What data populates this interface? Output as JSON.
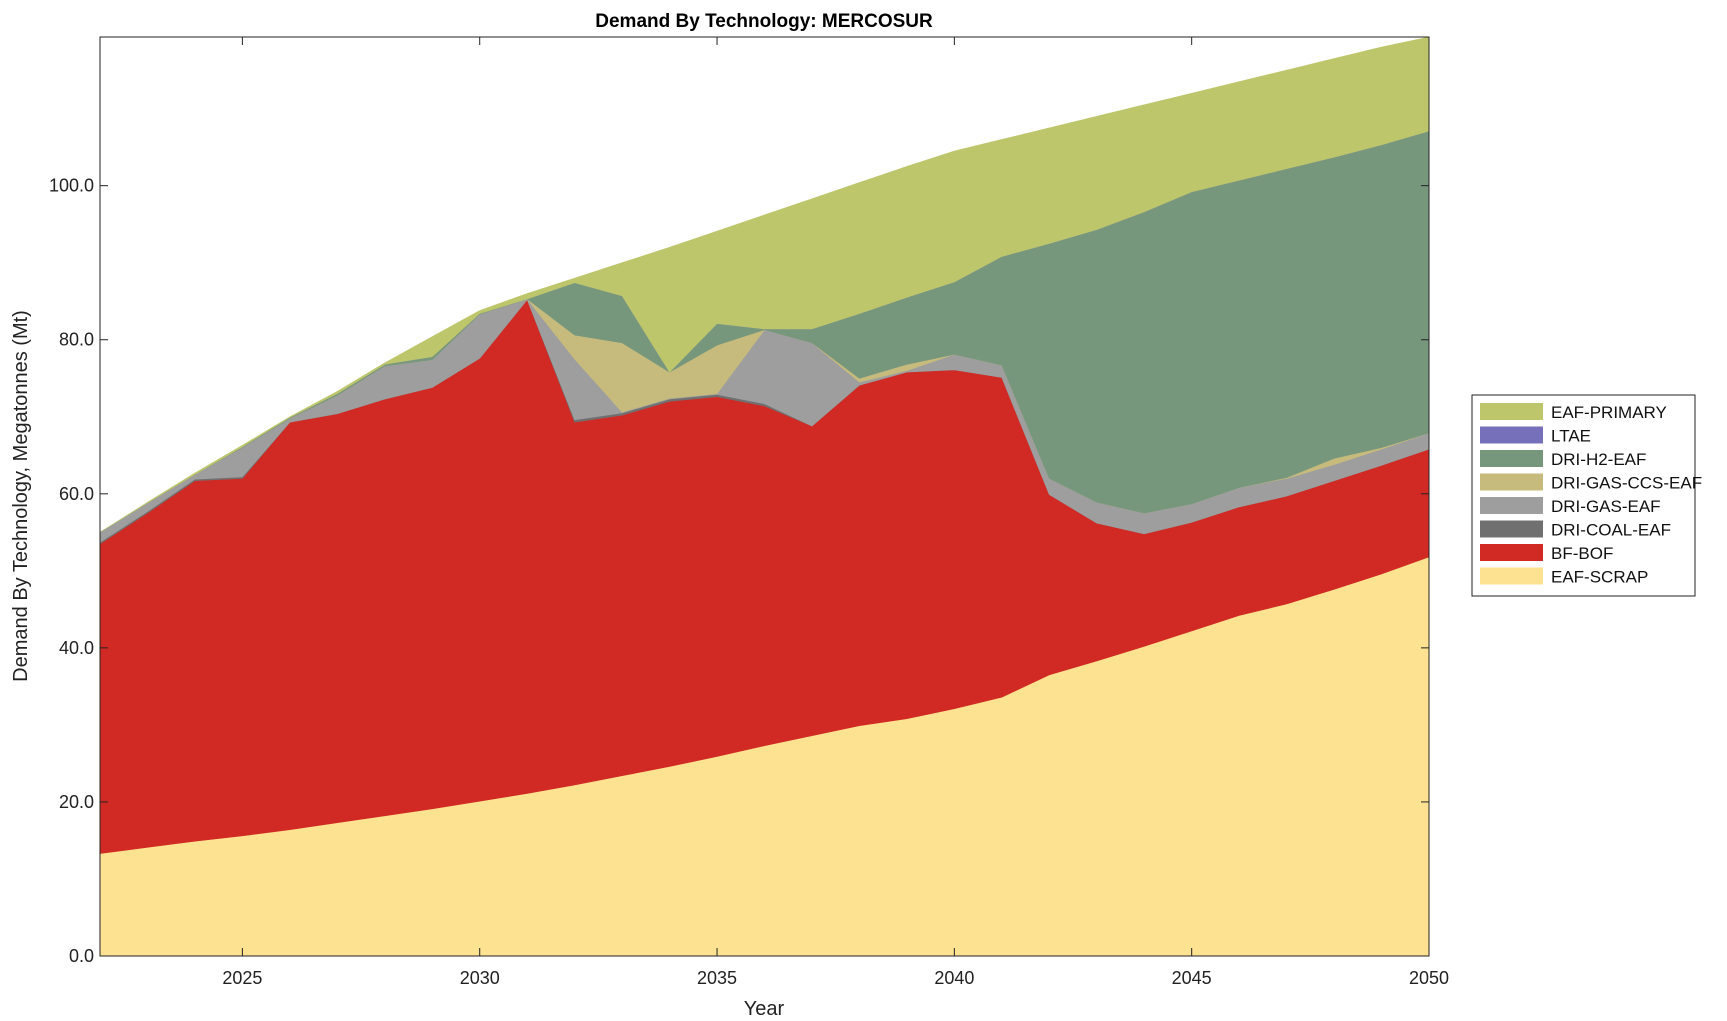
{
  "chart_data": {
    "type": "area",
    "stacked": true,
    "title": "Demand By Technology: MERCOSUR",
    "xlabel": "Year",
    "ylabel": "Demand By Technology, Megatonnes (Mt)",
    "xlim": [
      2022,
      2050
    ],
    "ylim": [
      0,
      119.3
    ],
    "xticks": [
      "2025",
      "2030",
      "2035",
      "2040",
      "2045",
      "2050"
    ],
    "yticks": [
      "0.0",
      "20.0",
      "40.0",
      "60.0",
      "80.0",
      "100.0"
    ],
    "grid": false,
    "legend_position": "right",
    "x": [
      2022,
      2023,
      2024,
      2025,
      2026,
      2027,
      2028,
      2029,
      2030,
      2031,
      2032,
      2033,
      2034,
      2035,
      2036,
      2037,
      2038,
      2039,
      2040,
      2041,
      2042,
      2043,
      2044,
      2045,
      2046,
      2047,
      2048,
      2049,
      2050
    ],
    "series": [
      {
        "name": "EAF-SCRAP",
        "color": "#fde391",
        "values": [
          13.3,
          14.1,
          14.9,
          15.6,
          16.4,
          17.3,
          18.2,
          19.1,
          20.1,
          21.1,
          22.2,
          23.4,
          24.6,
          25.9,
          27.3,
          28.6,
          29.9,
          30.8,
          32.1,
          33.6,
          36.5,
          38.3,
          40.2,
          42.2,
          44.2,
          45.7,
          47.6,
          49.6,
          51.8
        ]
      },
      {
        "name": "BF-BOF",
        "color": "#d12a24",
        "values": [
          40.2,
          43.4,
          46.8,
          46.4,
          52.9,
          53.1,
          54.1,
          54.7,
          57.5,
          64.1,
          47.1,
          46.8,
          47.4,
          46.7,
          44.1,
          40.2,
          44.2,
          45.0,
          44.0,
          41.5,
          23.4,
          17.9,
          14.6,
          14.1,
          14.1,
          14.0,
          14.1,
          14.1,
          14.0
        ]
      },
      {
        "name": "DRI-COAL-EAF",
        "color": "#707070",
        "values": [
          0.2,
          0.2,
          0.2,
          0.2,
          0,
          0,
          0,
          0,
          0,
          0,
          0.3,
          0.3,
          0.3,
          0.3,
          0.3,
          0,
          0,
          0,
          0,
          0,
          0,
          0,
          0,
          0,
          0,
          0,
          0,
          0,
          0
        ]
      },
      {
        "name": "DRI-GAS-EAF",
        "color": "#9e9e9e",
        "values": [
          1.3,
          1.1,
          0.6,
          3.8,
          0.5,
          2.4,
          4.3,
          3.6,
          5.7,
          0.1,
          7.9,
          0.1,
          0.1,
          0.1,
          9.6,
          10.8,
          0.4,
          0.2,
          2.0,
          1.6,
          2.1,
          2.7,
          2.7,
          2.4,
          2.5,
          2.3,
          2.1,
          2.1,
          2.1
        ]
      },
      {
        "name": "DRI-GAS-CCS-EAF",
        "color": "#c6bb7c",
        "values": [
          0,
          0,
          0,
          0,
          0,
          0,
          0,
          0,
          0,
          0,
          3.1,
          9.0,
          3.4,
          6.3,
          0,
          0,
          0.5,
          0.8,
          0,
          0,
          0,
          0,
          0,
          0,
          0,
          0.1,
          0.8,
          0.2,
          0
        ]
      },
      {
        "name": "DRI-H2-EAF",
        "color": "#77977d",
        "values": [
          0,
          0,
          0,
          0.1,
          0.1,
          0.2,
          0.2,
          0.4,
          0.1,
          0,
          6.8,
          6.1,
          0,
          2.8,
          0.1,
          1.8,
          8.4,
          8.7,
          9.4,
          14.1,
          30.5,
          35.4,
          39.1,
          40.5,
          39.9,
          40.1,
          39.1,
          39.3,
          39.2
        ]
      },
      {
        "name": "LTAE",
        "color": "#7570b9",
        "values": [
          0,
          0,
          0,
          0,
          0,
          0,
          0,
          0,
          0,
          0,
          0,
          0,
          0,
          0,
          0,
          0,
          0,
          0,
          0,
          0,
          0,
          0,
          0,
          0,
          0,
          0,
          0,
          0,
          0
        ]
      },
      {
        "name": "EAF-PRIMARY",
        "color": "#bdc66b",
        "values": [
          0,
          0.1,
          0.2,
          0.2,
          0.1,
          0.3,
          0.2,
          2.6,
          0.4,
          0.7,
          0.6,
          4.3,
          16.2,
          12.0,
          14.8,
          16.9,
          17.0,
          17.0,
          17.0,
          15.2,
          15.0,
          14.7,
          13.9,
          12.8,
          12.8,
          12.8,
          12.8,
          12.7,
          12.2
        ]
      }
    ]
  }
}
